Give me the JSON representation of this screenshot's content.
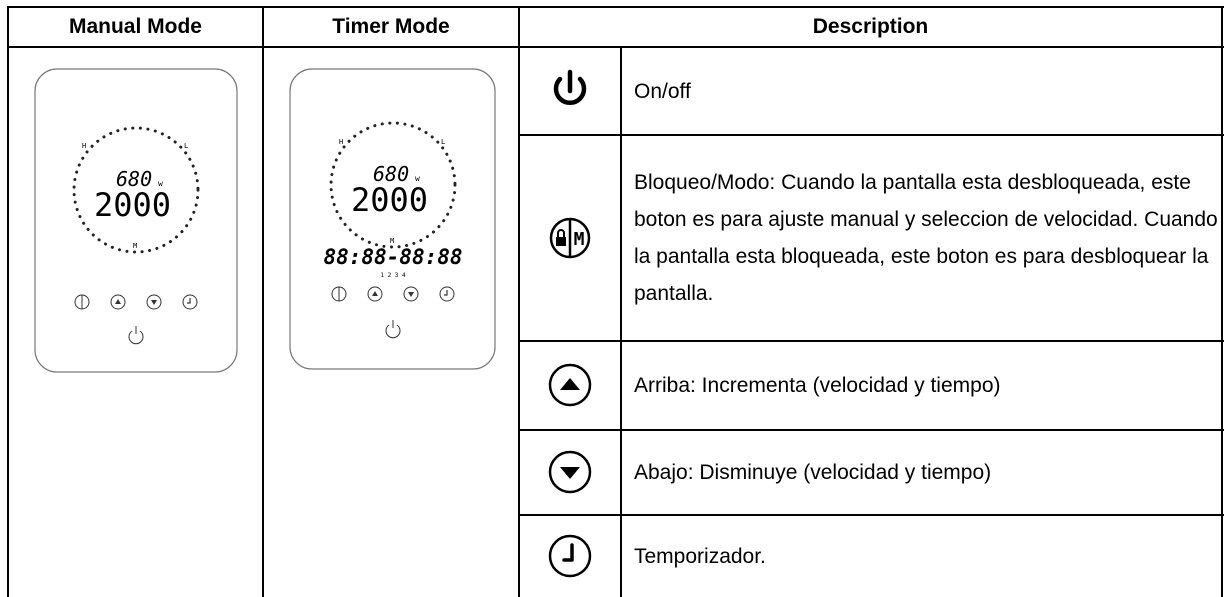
{
  "header": {
    "columns": [
      "Manual Mode",
      "Timer Mode",
      "Description"
    ]
  },
  "manual_panel": {
    "power": "680",
    "unit": "w",
    "speed": "2000",
    "labels": {
      "high": "H",
      "low": "L",
      "mid": "M"
    }
  },
  "timer_panel": {
    "power": "680",
    "unit": "w",
    "speed": "2000",
    "timer": "88:88-88:88",
    "slots": "1 2 3 4",
    "labels": {
      "high": "H",
      "low": "L",
      "mid": "M"
    }
  },
  "rows": [
    {
      "description": "On/off"
    },
    {
      "icon_text": "M",
      "description": "Bloqueo/Modo: Cuando la pantalla esta desbloqueada, este boton es para ajuste manual y seleccion de velocidad. Cuando la pantalla esta bloqueada, este boton es para desbloquear la pantalla."
    },
    {
      "description": "Arriba: Incrementa (velocidad y tiempo)"
    },
    {
      "description": "Abajo: Disminuye (velocidad y tiempo)"
    },
    {
      "description": "Temporizador."
    }
  ]
}
